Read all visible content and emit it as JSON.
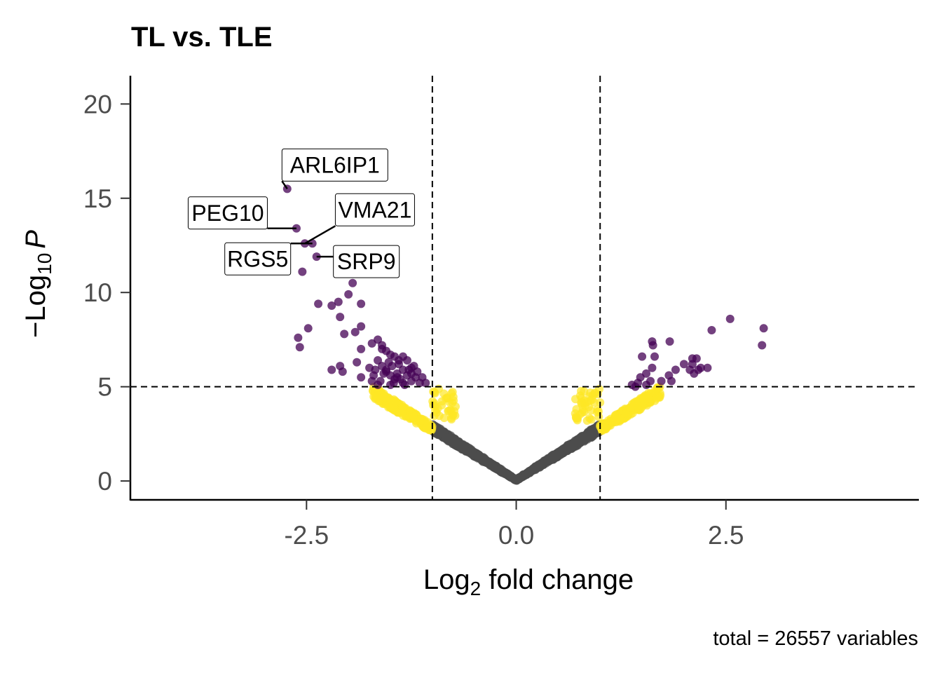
{
  "chart_data": {
    "type": "scatter",
    "subtype": "volcano",
    "title": "TL vs. TLE",
    "xlabel": {
      "base": "Log",
      "sub": "2",
      "rest": " fold change"
    },
    "ylabel": {
      "prefix": "−Log",
      "sub": "10",
      "italic": "P"
    },
    "caption": "total = 26557 variables",
    "xlim": [
      -4.6,
      4.8
    ],
    "ylim": [
      -1,
      21.5
    ],
    "x_ticks": [
      -2.5,
      0.0,
      2.5
    ],
    "x_tick_labels": [
      "-2.5",
      "0.0",
      "2.5"
    ],
    "y_ticks": [
      0,
      5,
      10,
      15,
      20
    ],
    "y_tick_labels": [
      "0",
      "5",
      "10",
      "15",
      "20"
    ],
    "thresholds": {
      "log2fc": [
        -1,
        1
      ],
      "neg_log10_p": 5
    },
    "grid": false,
    "legend": "none",
    "colors": {
      "significant": "#440154",
      "p_only": "#fde725",
      "not_significant": "#4d4d4d"
    },
    "significant_points": [
      [
        -2.73,
        15.5
      ],
      [
        -2.62,
        13.4
      ],
      [
        -2.52,
        12.6
      ],
      [
        -2.43,
        12.6
      ],
      [
        -2.38,
        11.9
      ],
      [
        -2.55,
        11.1
      ],
      [
        -1.95,
        10.5
      ],
      [
        -2.0,
        9.9
      ],
      [
        -2.12,
        9.5
      ],
      [
        -2.2,
        9.3
      ],
      [
        -1.85,
        9.4
      ],
      [
        -2.36,
        9.4
      ],
      [
        -2.1,
        8.7
      ],
      [
        -1.85,
        8.2
      ],
      [
        -1.92,
        7.9
      ],
      [
        -2.48,
        8.1
      ],
      [
        -2.6,
        7.6
      ],
      [
        -2.58,
        7.1
      ],
      [
        -2.05,
        7.8
      ],
      [
        -1.85,
        7.0
      ],
      [
        -1.9,
        6.3
      ],
      [
        -1.85,
        5.5
      ],
      [
        -2.07,
        5.8
      ],
      [
        -2.1,
        6.1
      ],
      [
        -2.2,
        5.9
      ],
      [
        -1.65,
        7.5
      ],
      [
        -1.72,
        7.3
      ],
      [
        -1.6,
        7.0
      ],
      [
        -1.5,
        6.7
      ],
      [
        -1.65,
        6.4
      ],
      [
        -1.6,
        6.1
      ],
      [
        -1.55,
        5.9
      ],
      [
        -1.5,
        5.6
      ],
      [
        -1.45,
        5.4
      ],
      [
        -1.4,
        6.2
      ],
      [
        -1.35,
        5.9
      ],
      [
        -1.3,
        5.6
      ],
      [
        -1.25,
        5.3
      ],
      [
        -1.2,
        5.5
      ],
      [
        -1.15,
        5.2
      ],
      [
        -1.7,
        5.6
      ],
      [
        -1.62,
        5.3
      ],
      [
        -1.55,
        5.8
      ],
      [
        -1.48,
        6.1
      ],
      [
        -1.42,
        5.7
      ],
      [
        -1.38,
        5.4
      ],
      [
        -1.33,
        5.1
      ],
      [
        -1.28,
        5.9
      ],
      [
        -1.22,
        6.1
      ],
      [
        -1.18,
        5.8
      ],
      [
        -1.12,
        5.5
      ],
      [
        -1.08,
        5.2
      ],
      [
        -1.45,
        6.6
      ],
      [
        -1.55,
        6.9
      ],
      [
        -1.6,
        7.2
      ],
      [
        -1.75,
        6.0
      ],
      [
        -1.68,
        5.9
      ],
      [
        -1.52,
        6.3
      ],
      [
        -1.3,
        6.4
      ],
      [
        -1.25,
        6.0
      ],
      [
        -1.35,
        6.6
      ],
      [
        -1.4,
        6.4
      ],
      [
        -1.58,
        5.7
      ],
      [
        -1.46,
        5.2
      ],
      [
        -1.5,
        5.1
      ],
      [
        -1.35,
        5.2
      ],
      [
        -1.42,
        5.5
      ],
      [
        -1.25,
        5.7
      ],
      [
        -1.65,
        5.1
      ],
      [
        -1.72,
        5.3
      ],
      [
        2.55,
        8.6
      ],
      [
        2.33,
        8.0
      ],
      [
        2.95,
        8.1
      ],
      [
        2.93,
        7.2
      ],
      [
        1.62,
        7.4
      ],
      [
        1.63,
        7.2
      ],
      [
        1.83,
        7.4
      ],
      [
        1.5,
        6.6
      ],
      [
        1.65,
        6.6
      ],
      [
        1.62,
        6.0
      ],
      [
        1.55,
        5.7
      ],
      [
        2.1,
        6.5
      ],
      [
        2.15,
        6.5
      ],
      [
        2.2,
        6.0
      ],
      [
        2.28,
        6.0
      ],
      [
        2.1,
        6.2
      ],
      [
        2.07,
        5.9
      ],
      [
        2.0,
        6.2
      ],
      [
        1.9,
        5.9
      ],
      [
        2.12,
        5.7
      ],
      [
        2.17,
        5.9
      ],
      [
        1.82,
        5.6
      ],
      [
        1.85,
        5.3
      ],
      [
        1.73,
        5.3
      ],
      [
        1.45,
        5.2
      ],
      [
        1.48,
        5.5
      ],
      [
        1.42,
        5.0
      ],
      [
        1.55,
        5.1
      ],
      [
        1.6,
        5.3
      ],
      [
        1.38,
        5.1
      ]
    ],
    "labels": [
      {
        "text": "ARL6IP1",
        "x": -2.73,
        "y": 15.5
      },
      {
        "text": "PEG10",
        "x": -2.62,
        "y": 13.4
      },
      {
        "text": "VMA21",
        "x": -2.52,
        "y": 12.6
      },
      {
        "text": "RGS5",
        "x": -2.43,
        "y": 12.6
      },
      {
        "text": "SRP9",
        "x": -2.38,
        "y": 11.9
      }
    ]
  }
}
